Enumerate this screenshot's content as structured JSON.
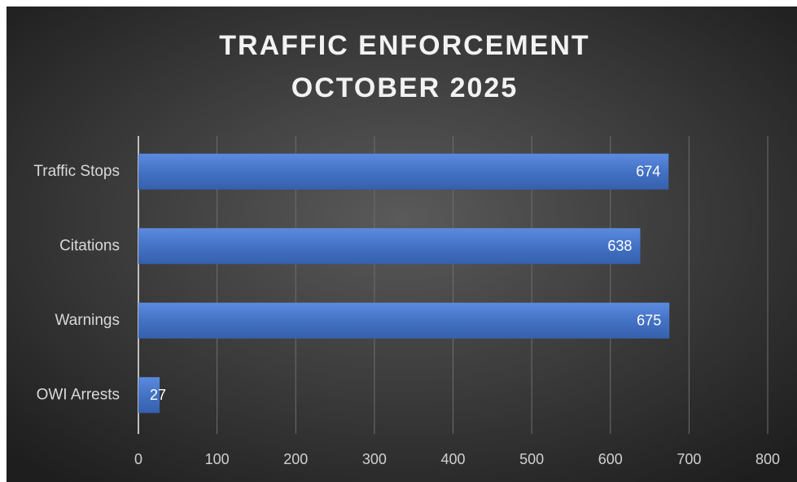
{
  "chart_data": {
    "type": "bar",
    "orientation": "horizontal",
    "title": [
      "TRAFFIC ENFORCEMENT",
      "OCTOBER 2025"
    ],
    "categories": [
      "Traffic Stops",
      "Citations",
      "Warnings",
      "OWI Arrests"
    ],
    "values": [
      674,
      638,
      675,
      27
    ],
    "color": "#4472c4",
    "xlim": [
      0,
      800
    ],
    "xticks": [
      0,
      100,
      200,
      300,
      400,
      500,
      600,
      700,
      800
    ],
    "grid": true
  }
}
